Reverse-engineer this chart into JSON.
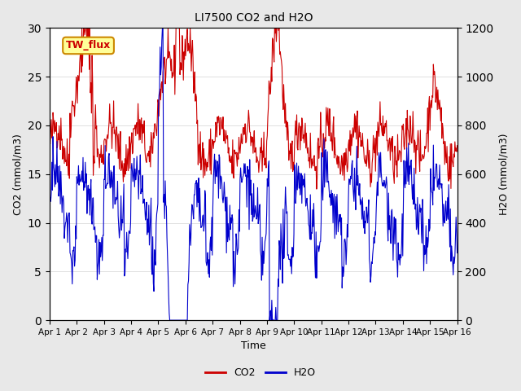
{
  "title": "LI7500 CO2 and H2O",
  "xlabel": "Time",
  "ylabel_left": "CO2 (mmol/m3)",
  "ylabel_right": "H2O (mmol/m3)",
  "legend_label": "TW_flux",
  "co2_color": "#cc0000",
  "h2o_color": "#0000cc",
  "background_color": "#e8e8e8",
  "ylim_left": [
    0,
    30
  ],
  "ylim_right": [
    0,
    1200
  ],
  "x_tick_labels": [
    "Apr 1",
    "Apr 2",
    "Apr 3",
    "Apr 4",
    "Apr 5",
    "Apr 6",
    "Apr 7",
    "Apr 8",
    "Apr 9",
    "Apr 10",
    "Apr 11",
    "Apr 12",
    "Apr 13",
    "Apr 14",
    "Apr 15",
    "Apr 16"
  ],
  "n_days": 15,
  "seed": 42
}
